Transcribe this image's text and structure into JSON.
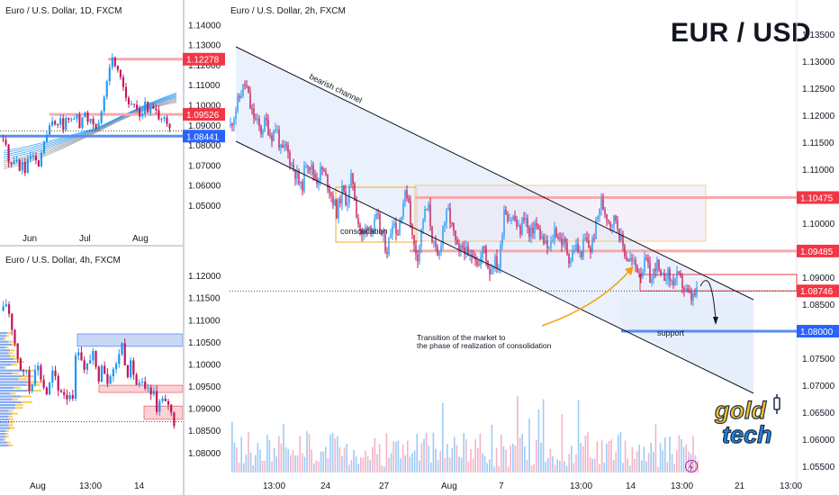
{
  "main_title": "EUR / USD",
  "chart_data": [
    {
      "id": "main",
      "type": "candlestick",
      "title": "Euro / U.S. Dollar, 2h, FXCM",
      "ylim": [
        1.0545,
        1.139
      ],
      "y_ticks": [
        "1.13500",
        "1.13000",
        "1.12500",
        "1.12000",
        "1.11500",
        "1.11000",
        "1.10500",
        "1.10000",
        "1.09500",
        "1.09000",
        "1.08500",
        "1.08000",
        "1.07500",
        "1.07000",
        "1.06500",
        "1.06000",
        "1.05500"
      ],
      "x_ticks": [
        "13:00",
        "24",
        "27",
        "Aug",
        "7",
        "13:00",
        "14",
        "13:00",
        "21",
        "13:00"
      ],
      "price_tags": [
        {
          "label": "1.10475",
          "value": 1.10475,
          "color": "#f23645"
        },
        {
          "label": "1.09485",
          "value": 1.09485,
          "color": "#f23645"
        },
        {
          "label": "1.08746",
          "value": 1.08746,
          "color": "#f23645"
        },
        {
          "label": "1.08000",
          "value": 1.08,
          "color": "#2962ff"
        }
      ],
      "levels": [
        {
          "name": "resistance-top",
          "value": 1.10475,
          "color": "#f7a9ad"
        },
        {
          "name": "resistance-bottom",
          "value": 1.09485,
          "color": "#f7a9ad"
        },
        {
          "name": "support",
          "value": 1.08,
          "color": "#2962ff"
        }
      ],
      "annotations": {
        "channel": "bearish channel",
        "consolidation": "consolidation",
        "transition_line1": "Transition of the market to",
        "transition_line2": "the phase of realization of consolidation",
        "support": "support"
      },
      "path": [
        1.118,
        1.121,
        1.124,
        1.126,
        1.121,
        1.119,
        1.117,
        1.119,
        1.116,
        1.118,
        1.113,
        1.114,
        1.111,
        1.109,
        1.106,
        1.112,
        1.11,
        1.108,
        1.11,
        1.108,
        1.105,
        1.102,
        1.106,
        1.104,
        1.109,
        1.101,
        1.097,
        1.1,
        1.099,
        1.101,
        1.097,
        1.095,
        1.101,
        1.098,
        1.104,
        1.106,
        1.096,
        1.094,
        1.101,
        1.103,
        1.096,
        1.093,
        1.1,
        1.102,
        1.098,
        1.094,
        1.096,
        1.093,
        1.095,
        1.092,
        1.096,
        1.091,
        1.093,
        1.092,
        1.103,
        1.101,
        1.101,
        1.098,
        1.102,
        1.097,
        1.1,
        1.098,
        1.096,
        1.095,
        1.099,
        1.097,
        1.096,
        1.093,
        1.096,
        1.094,
        1.097,
        1.095,
        1.099,
        1.104,
        1.102,
        1.1,
        1.101,
        1.097,
        1.094,
        1.093,
        1.092,
        1.091,
        1.093,
        1.089,
        1.093,
        1.089,
        1.091,
        1.089,
        1.09,
        1.089,
        1.087,
        1.086,
        1.087
      ]
    },
    {
      "id": "daily",
      "type": "candlestick",
      "title": "Euro / U.S. Dollar, 1D, FXCM",
      "ylim": [
        1.041,
        1.146
      ],
      "y_ticks": [
        "1.14000",
        "1.13000",
        "1.12000",
        "1.11000",
        "1.10000",
        "1.09000",
        "1.08000",
        "1.07000",
        "1.06000",
        "1.05000"
      ],
      "x_ticks": [
        "Jun",
        "Jul",
        "Aug"
      ],
      "price_tags": [
        {
          "label": "1.12278",
          "value": 1.12278,
          "color": "#f23645"
        },
        {
          "label": "1.09526",
          "value": 1.09526,
          "color": "#f23645"
        },
        {
          "label": "1.08441",
          "value": 1.08441,
          "color": "#2962ff"
        }
      ],
      "path": [
        1.083,
        1.078,
        1.072,
        1.07,
        1.074,
        1.068,
        1.071,
        1.066,
        1.072,
        1.075,
        1.072,
        1.068,
        1.073,
        1.082,
        1.085,
        1.089,
        1.093,
        1.091,
        1.094,
        1.087,
        1.092,
        1.095,
        1.09,
        1.097,
        1.088,
        1.092,
        1.096,
        1.092,
        1.094,
        1.091,
        1.09,
        1.092,
        1.101,
        1.112,
        1.121,
        1.123,
        1.119,
        1.118,
        1.111,
        1.105,
        1.101,
        1.098,
        1.101,
        1.096,
        1.095,
        1.101,
        1.096,
        1.099,
        1.097,
        1.094,
        1.096,
        1.092,
        1.09,
        1.087
      ]
    },
    {
      "id": "h4",
      "type": "candlestick",
      "title": "Euro / U.S. Dollar, 4h, FXCM",
      "ylim": [
        1.0765,
        1.1245
      ],
      "y_ticks": [
        "1.12000",
        "1.11500",
        "1.11000",
        "1.10500",
        "1.10000",
        "1.09500",
        "1.09000",
        "1.08500",
        "1.08000"
      ],
      "x_ticks": [
        "Aug",
        "13:00",
        "14"
      ],
      "path": [
        1.112,
        1.114,
        1.111,
        1.107,
        1.103,
        1.1,
        1.097,
        1.099,
        1.094,
        1.097,
        1.101,
        1.098,
        1.096,
        1.093,
        1.095,
        1.098,
        1.096,
        1.093,
        1.095,
        1.092,
        1.094,
        1.092,
        1.101,
        1.104,
        1.101,
        1.097,
        1.101,
        1.103,
        1.099,
        1.097,
        1.101,
        1.098,
        1.096,
        1.1,
        1.098,
        1.102,
        1.105,
        1.101,
        1.098,
        1.1,
        1.097,
        1.094,
        1.096,
        1.093,
        1.095,
        1.092,
        1.094,
        1.089,
        1.093,
        1.09,
        1.092,
        1.089,
        1.087
      ]
    }
  ]
}
